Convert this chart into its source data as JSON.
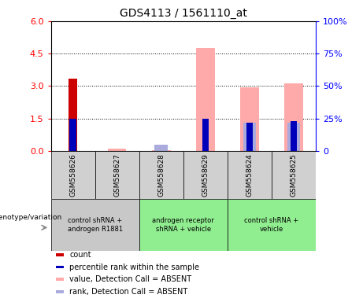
{
  "title": "GDS4113 / 1561110_at",
  "samples": [
    "GSM558626",
    "GSM558627",
    "GSM558628",
    "GSM558629",
    "GSM558624",
    "GSM558625"
  ],
  "group_configs": [
    {
      "indices": [
        0,
        1
      ],
      "color": "#c8c8c8",
      "label": "control shRNA +\nandrogen R1881"
    },
    {
      "indices": [
        2,
        3
      ],
      "color": "#90ee90",
      "label": "androgen receptor\nshRNA + vehicle"
    },
    {
      "indices": [
        4,
        5
      ],
      "color": "#90ee90",
      "label": "control shRNA +\nvehicle"
    }
  ],
  "count_values": [
    3.35,
    0,
    0,
    0,
    0,
    0
  ],
  "absent_value_values": [
    0,
    0.12,
    0.05,
    4.75,
    2.93,
    3.12
  ],
  "percentile_values": [
    25,
    0,
    0,
    25,
    22,
    23
  ],
  "absent_rank_values": [
    0,
    0,
    5,
    0,
    22,
    22
  ],
  "ylim_left": [
    0,
    6
  ],
  "ylim_right": [
    0,
    100
  ],
  "yticks_left": [
    0,
    1.5,
    3.0,
    4.5,
    6.0
  ],
  "yticks_right": [
    0,
    25,
    50,
    75,
    100
  ],
  "bar_width": 0.3,
  "count_color": "#cc0000",
  "percentile_color": "#0000bb",
  "absent_value_color": "#ffaaaa",
  "absent_rank_color": "#aaaadd",
  "legend_items": [
    {
      "label": "count",
      "color": "#cc0000"
    },
    {
      "label": "percentile rank within the sample",
      "color": "#0000bb"
    },
    {
      "label": "value, Detection Call = ABSENT",
      "color": "#ffaaaa"
    },
    {
      "label": "rank, Detection Call = ABSENT",
      "color": "#aaaadd"
    }
  ],
  "group_label_prefix": "genotype/variation"
}
